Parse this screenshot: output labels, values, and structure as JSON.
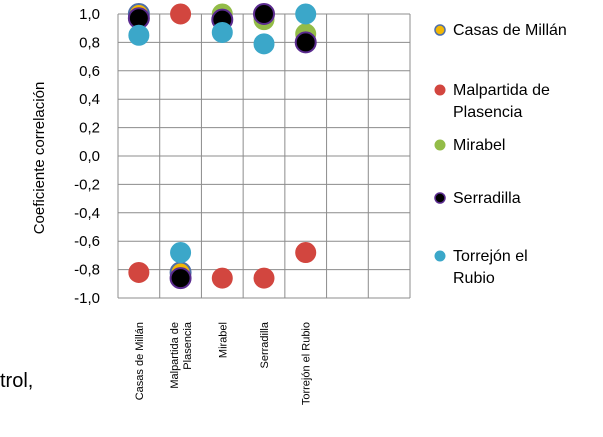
{
  "chart_data": {
    "type": "scatter",
    "title": "",
    "ylabel": "Coeficiente correlación",
    "xlabel": "",
    "ylim": [
      -1.0,
      1.0
    ],
    "yticks": [
      "1,0",
      "0,8",
      "0,6",
      "0,4",
      "0,2",
      "0,0",
      "-0,2",
      "-0,4",
      "-0,6",
      "-0,8",
      "-1,0"
    ],
    "categories": [
      "Casas de Millán",
      "Malpartida de Plasencia",
      "Mirabel",
      "Serradilla",
      "Torrejón el Rubio"
    ],
    "category_labels": [
      [
        "Casas de Millán"
      ],
      [
        "Malpartida de",
        "Plasencia"
      ],
      [
        "Mirabel"
      ],
      [
        "Serradilla"
      ],
      [
        "Torrejón el Rubio"
      ]
    ],
    "grid": true,
    "legend_position": "right",
    "series": [
      {
        "name": "Casas de Millán",
        "legend_lines": [
          "Casas de Millán"
        ],
        "color": "#F2B705",
        "edge": "#4F6FA8",
        "values": [
          1.0,
          -0.82,
          null,
          null,
          null
        ]
      },
      {
        "name": "Malpartida de Plasencia",
        "legend_lines": [
          "Malpartida de",
          "Plasencia"
        ],
        "color": "#D2463F",
        "edge": "#D2463F",
        "values": [
          -0.82,
          1.0,
          -0.86,
          -0.86,
          -0.68
        ]
      },
      {
        "name": "Mirabel",
        "legend_lines": [
          "Mirabel"
        ],
        "color": "#93BC48",
        "edge": "#93BC48",
        "values": [
          null,
          null,
          1.0,
          0.96,
          0.86
        ]
      },
      {
        "name": "Serradilla",
        "legend_lines": [
          "Serradilla"
        ],
        "color": "#000000",
        "edge": "#5B2C8F",
        "values": [
          0.97,
          -0.86,
          0.96,
          1.0,
          0.8
        ]
      },
      {
        "name": "Torrejón el Rubio",
        "legend_lines": [
          "Torrejón el",
          "Rubio"
        ],
        "color": "#3BA7C9",
        "edge": "#3BA7C9",
        "values": [
          0.85,
          -0.68,
          0.87,
          0.79,
          1.0
        ]
      }
    ]
  },
  "fragment_text": "trol,"
}
